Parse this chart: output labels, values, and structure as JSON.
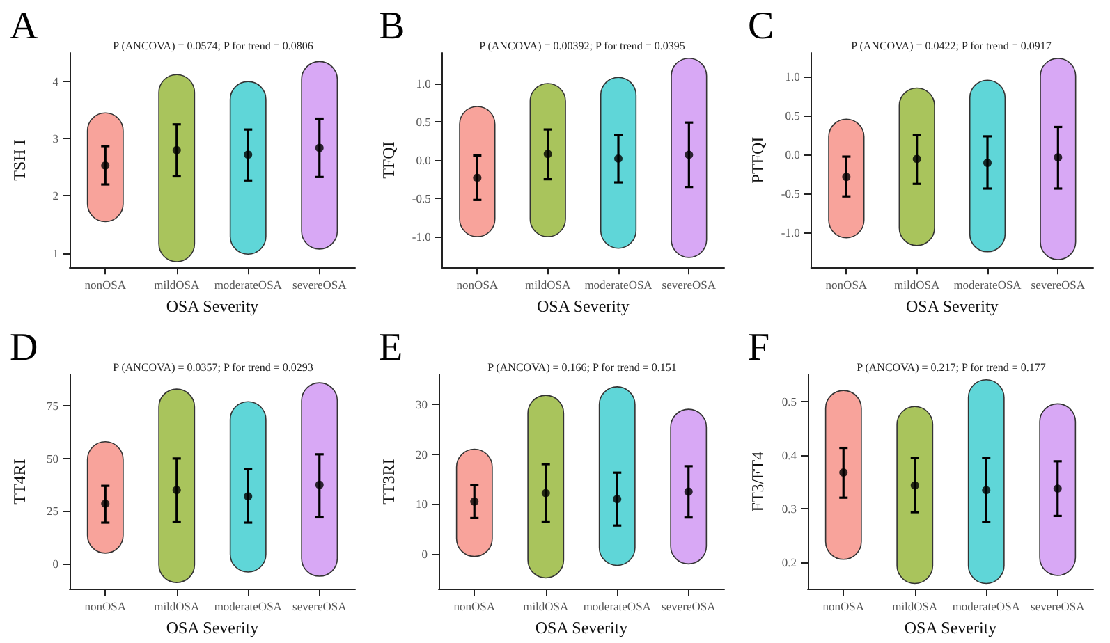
{
  "chart_data": [
    {
      "type": "scatter",
      "title": "A",
      "xlabel": "OSA Severity",
      "ylabel": "TSH I",
      "annotations": [
        "P (ANCOVA) = 0.0574; P for trend = 0.0806"
      ],
      "categories": [
        "nonOSA",
        "mildOSA",
        "moderateOSA",
        "severeOSA"
      ],
      "ylim": [
        0.75,
        4.5
      ],
      "yticks": [
        1,
        2,
        3,
        4
      ],
      "marker": "circle",
      "series": [
        {
          "type": "bar",
          "colors": [
            "#f8a39b",
            "#a9c45c",
            "#5fd6d8",
            "#d8a8f5"
          ],
          "base": [
            1.55,
            0.85,
            0.98,
            1.07
          ],
          "values": [
            1.9,
            3.27,
            3.02,
            3.28
          ]
        },
        {
          "color": "#000000",
          "values": [
            2.53,
            2.8,
            2.72,
            2.84
          ],
          "errors": [
            [
              2.2,
              2.87
            ],
            [
              2.34,
              3.25
            ],
            [
              2.27,
              3.16
            ],
            [
              2.33,
              3.35
            ]
          ]
        }
      ]
    },
    {
      "type": "scatter",
      "title": "B",
      "xlabel": "OSA Severity",
      "ylabel": "TFQI",
      "annotations": [
        "P (ANCOVA) = 0.00392; P for trend = 0.0395"
      ],
      "categories": [
        "nonOSA",
        "mildOSA",
        "moderateOSA",
        "severeOSA"
      ],
      "ylim": [
        -1.4,
        1.4
      ],
      "yticks": [
        {
          "value": -1,
          "label": "-1.0"
        },
        {
          "value": -0.5,
          "label": "-0.5"
        },
        {
          "value": 0,
          "label": "0.0"
        },
        {
          "value": 0.5,
          "label": "0.5"
        },
        {
          "value": 1,
          "label": "1.0"
        }
      ],
      "marker": "circle",
      "series": [
        {
          "type": "bar",
          "colors": [
            "#f8a39b",
            "#a9c45c",
            "#5fd6d8",
            "#d8a8f5"
          ],
          "base": [
            -1.0,
            -1.0,
            -1.15,
            -1.27
          ],
          "values": [
            1.7,
            2.0,
            2.23,
            2.6
          ]
        },
        {
          "color": "#000000",
          "values": [
            -0.23,
            0.08,
            0.02,
            0.07
          ],
          "errors": [
            [
              -0.52,
              0.06
            ],
            [
              -0.25,
              0.4
            ],
            [
              -0.29,
              0.33
            ],
            [
              -0.35,
              0.49
            ]
          ]
        }
      ]
    },
    {
      "type": "scatter",
      "title": "C",
      "xlabel": "OSA Severity",
      "ylabel": "PTFQI",
      "annotations": [
        "P (ANCOVA) = 0.0422; P for trend = 0.0917"
      ],
      "categories": [
        "nonOSA",
        "mildOSA",
        "moderateOSA",
        "severeOSA"
      ],
      "ylim": [
        -1.45,
        1.3
      ],
      "yticks": [
        {
          "value": -1,
          "label": "-1.0"
        },
        {
          "value": -0.5,
          "label": "-0.5"
        },
        {
          "value": 0,
          "label": "0.0"
        },
        {
          "value": 0.5,
          "label": "0.5"
        },
        {
          "value": 1,
          "label": "1.0"
        }
      ],
      "marker": "circle",
      "series": [
        {
          "type": "bar",
          "colors": [
            "#f8a39b",
            "#a9c45c",
            "#5fd6d8",
            "#d8a8f5"
          ],
          "base": [
            -1.07,
            -1.17,
            -1.25,
            -1.35
          ],
          "values": [
            1.52,
            2.02,
            2.2,
            2.58
          ]
        },
        {
          "color": "#000000",
          "values": [
            -0.29,
            -0.06,
            -0.11,
            -0.04
          ],
          "errors": [
            [
              -0.54,
              -0.03
            ],
            [
              -0.38,
              0.25
            ],
            [
              -0.44,
              0.23
            ],
            [
              -0.44,
              0.35
            ]
          ]
        }
      ]
    },
    {
      "type": "scatter",
      "title": "D",
      "xlabel": "OSA Severity",
      "ylabel": "TT4RI",
      "annotations": [
        "P (ANCOVA) = 0.0357; P for trend = 0.0293"
      ],
      "categories": [
        "nonOSA",
        "mildOSA",
        "moderateOSA",
        "severeOSA"
      ],
      "ylim": [
        -12,
        90
      ],
      "yticks": [
        0,
        25,
        50,
        75
      ],
      "marker": "circle",
      "series": [
        {
          "type": "bar",
          "colors": [
            "#f8a39b",
            "#a9c45c",
            "#5fd6d8",
            "#d8a8f5"
          ],
          "base": [
            5,
            -9,
            -4,
            -6
          ],
          "values": [
            53,
            92,
            81,
            92
          ]
        },
        {
          "color": "#000000",
          "values": [
            28.5,
            35,
            32,
            37.5
          ],
          "errors": [
            [
              19.5,
              37
            ],
            [
              20,
              50
            ],
            [
              19.5,
              45
            ],
            [
              22,
              52
            ]
          ]
        }
      ]
    },
    {
      "type": "scatter",
      "title": "E",
      "xlabel": "OSA Severity",
      "ylabel": "TT3RI",
      "annotations": [
        "P (ANCOVA) = 0.166; P for trend = 0.151"
      ],
      "categories": [
        "nonOSA",
        "mildOSA",
        "moderateOSA",
        "severeOSA"
      ],
      "ylim": [
        -7,
        36
      ],
      "yticks": [
        0,
        10,
        20,
        30
      ],
      "marker": "circle",
      "series": [
        {
          "type": "bar",
          "colors": [
            "#f8a39b",
            "#a9c45c",
            "#5fd6d8",
            "#d8a8f5"
          ],
          "base": [
            -0.5,
            -4.8,
            -2.3,
            -2
          ],
          "values": [
            21.5,
            36.6,
            35.8,
            31
          ]
        },
        {
          "color": "#000000",
          "values": [
            10.5,
            12.2,
            11,
            12.5
          ],
          "errors": [
            [
              7.2,
              13.8
            ],
            [
              6.5,
              18
            ],
            [
              5.7,
              16.3
            ],
            [
              7.3,
              17.6
            ]
          ]
        }
      ]
    },
    {
      "type": "scatter",
      "title": "F",
      "xlabel": "OSA Severity",
      "ylabel": "FT3/FT4",
      "annotations": [
        "P (ANCOVA) = 0.217; P for trend = 0.177"
      ],
      "categories": [
        "nonOSA",
        "mildOSA",
        "moderateOSA",
        "severeOSA"
      ],
      "ylim": [
        0.15,
        0.55
      ],
      "yticks": [
        0.2,
        0.3,
        0.4,
        0.5
      ],
      "marker": "circle",
      "series": [
        {
          "type": "bar",
          "colors": [
            "#f8a39b",
            "#a9c45c",
            "#5fd6d8",
            "#d8a8f5"
          ],
          "base": [
            0.205,
            0.16,
            0.16,
            0.175
          ],
          "values": [
            0.315,
            0.33,
            0.38,
            0.32
          ]
        },
        {
          "color": "#000000",
          "values": [
            0.367,
            0.343,
            0.334,
            0.337
          ],
          "errors": [
            [
              0.32,
              0.413
            ],
            [
              0.293,
              0.394
            ],
            [
              0.275,
              0.394
            ],
            [
              0.286,
              0.388
            ]
          ]
        }
      ]
    }
  ]
}
